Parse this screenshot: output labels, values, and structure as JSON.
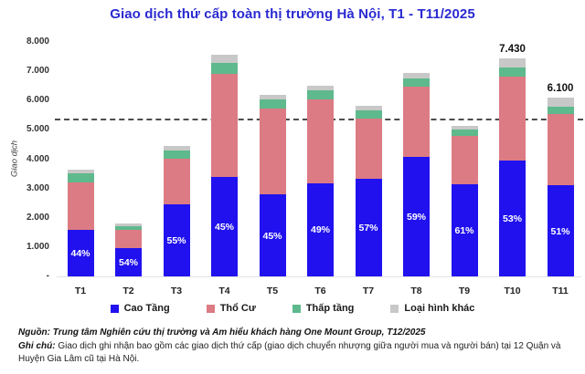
{
  "title": "Giao dịch thứ cấp toàn thị trường Hà Nội, T1 - T11/2025",
  "chart_data": {
    "type": "bar",
    "stacked": true,
    "title": "Giao dịch thứ cấp toàn thị trường Hà Nội, T1 - T11/2025",
    "xlabel": "",
    "ylabel": "Giao dịch",
    "ylim": [
      0,
      8000
    ],
    "grid": false,
    "legend_position": "bottom",
    "yticks": [
      {
        "value": 8000,
        "label": "8.000"
      },
      {
        "value": 7000,
        "label": "7.000"
      },
      {
        "value": 6000,
        "label": "6.000"
      },
      {
        "value": 5000,
        "label": "5.000"
      },
      {
        "value": 4000,
        "label": "4.000"
      },
      {
        "value": 3000,
        "label": "3.000"
      },
      {
        "value": 2000,
        "label": "2.000"
      },
      {
        "value": 1000,
        "label": "1.000"
      },
      {
        "value": 0,
        "label": "-"
      }
    ],
    "categories": [
      "T1",
      "T2",
      "T3",
      "T4",
      "T5",
      "T6",
      "T7",
      "T8",
      "T9",
      "T10",
      "T11"
    ],
    "series": [
      {
        "name": "Cao Tầng",
        "color": "#2011ee",
        "values": [
          1600,
          970,
          2450,
          3400,
          2790,
          3190,
          3320,
          4090,
          3140,
          3940,
          3110
        ]
      },
      {
        "name": "Thổ Cư",
        "color": "#dc7b84",
        "values": [
          1620,
          620,
          1580,
          3520,
          2930,
          2840,
          2060,
          2390,
          1650,
          2870,
          2440
        ]
      },
      {
        "name": "Thấp tầng",
        "color": "#5eb98c",
        "values": [
          290,
          110,
          270,
          360,
          310,
          310,
          290,
          280,
          230,
          310,
          250
        ]
      },
      {
        "name": "Loại hình khác",
        "color": "#c8c8c8",
        "values": [
          140,
          100,
          155,
          270,
          170,
          180,
          160,
          180,
          130,
          310,
          300
        ]
      }
    ],
    "percent_labels_on_first_series": [
      "44%",
      "54%",
      "55%",
      "45%",
      "45%",
      "49%",
      "57%",
      "59%",
      "61%",
      "53%",
      "51%"
    ],
    "total_labels": [
      "",
      "",
      "",
      "",
      "",
      "",
      "",
      "",
      "",
      "7.430",
      "6.100"
    ],
    "dashed_reference_line": {
      "value": 5350,
      "color": "#4d4d4d"
    }
  },
  "colors": {
    "title": "#2a2ad2",
    "background": "#ffffff"
  },
  "footnotes": {
    "source_label": "Nguồn:",
    "source_text": "Trung tâm Nghiên cứu thị trường và Am hiểu khách hàng One Mount Group, T12/2025",
    "note_label": "Ghi chú:",
    "note_text": "Giao dịch ghi nhận bao gồm các giao dịch thứ cấp (giao dịch chuyển nhượng giữa người mua và người bán) tại 12 Quận và Huyện Gia Lâm cũ tại Hà Nội."
  }
}
